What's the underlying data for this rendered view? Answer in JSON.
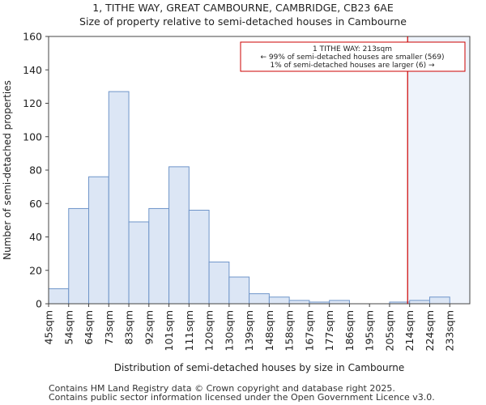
{
  "chart_data": {
    "type": "bar",
    "title": "1, TITHE WAY, GREAT CAMBOURNE, CAMBRIDGE, CB23 6AE",
    "subtitle": "Size of property relative to semi-detached houses in Cambourne",
    "xlabel": "Distribution of semi-detached houses by size in Cambourne",
    "ylabel": "Number of semi-detached properties",
    "ylim": [
      0,
      160
    ],
    "yticks": [
      0,
      20,
      40,
      60,
      80,
      100,
      120,
      140,
      160
    ],
    "categories": [
      "45sqm",
      "54sqm",
      "64sqm",
      "73sqm",
      "83sqm",
      "92sqm",
      "101sqm",
      "111sqm",
      "120sqm",
      "130sqm",
      "139sqm",
      "148sqm",
      "158sqm",
      "167sqm",
      "177sqm",
      "186sqm",
      "195sqm",
      "205sqm",
      "214sqm",
      "224sqm",
      "233sqm"
    ],
    "values": [
      9,
      57,
      76,
      127,
      49,
      57,
      82,
      56,
      25,
      16,
      6,
      4,
      2,
      1,
      2,
      0,
      0,
      1,
      2,
      4,
      0
    ],
    "marker": {
      "value_sqm": 213,
      "position_bins": 17.9,
      "color": "#cc0000",
      "shade_color": "#eef3fb"
    },
    "annotation": {
      "line1": "1 TITHE WAY: 213sqm",
      "line2": "← 99% of semi-detached houses are smaller (569)",
      "line3": "1% of semi-detached houses are larger (6) →",
      "border_color": "#cc0000"
    },
    "bar_fill": "#dce6f5",
    "bar_edge": "#6f95c9"
  },
  "footer": {
    "line1": "Contains HM Land Registry data © Crown copyright and database right 2025.",
    "line2": "Contains public sector information licensed under the Open Government Licence v3.0."
  }
}
